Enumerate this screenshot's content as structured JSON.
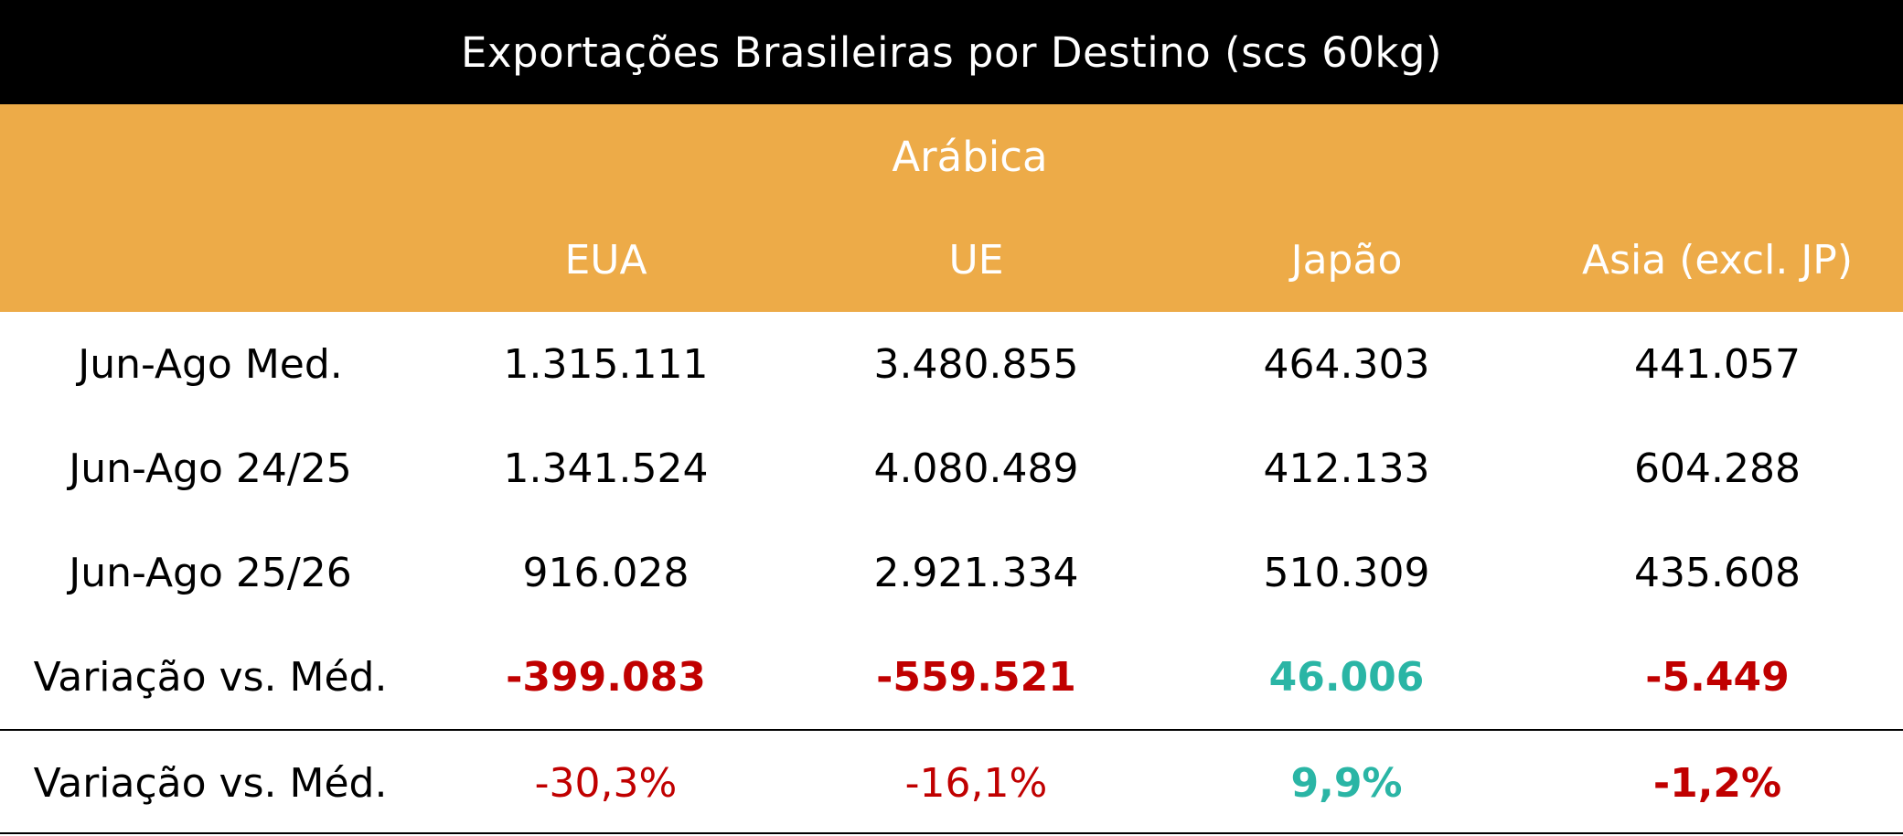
{
  "title": "Exportações Brasileiras por Destino (scs 60kg)",
  "category": "Arábica",
  "columns": [
    "EUA",
    "UE",
    "Japão",
    "Asia (excl. JP)"
  ],
  "colors": {
    "header_bg": "#EDAB48",
    "title_bg": "#000000",
    "negative": "#C00000",
    "positive": "#2AB5A5"
  },
  "rows": [
    {
      "label": "Jun-Ago Med.",
      "values": [
        "1.315.111",
        "3.480.855",
        "464.303",
        "441.057"
      ]
    },
    {
      "label": "Jun-Ago 24/25",
      "values": [
        "1.341.524",
        "4.080.489",
        "412.133",
        "604.288"
      ]
    },
    {
      "label": "Jun-Ago 25/26",
      "values": [
        "916.028",
        "2.921.334",
        "510.309",
        "435.608"
      ]
    },
    {
      "label": "Variação vs. Méd.",
      "values": [
        "-399.083",
        "-559.521",
        "46.006",
        "-5.449"
      ]
    },
    {
      "label": "Variação vs. Méd.",
      "values": [
        "-30,3%",
        "-16,1%",
        "9,9%",
        "-1,2%"
      ]
    }
  ],
  "value_styles": {
    "row3": [
      "negative-bold",
      "negative-bold",
      "positive-bold",
      "negative-bold"
    ],
    "row4": [
      "negative",
      "negative",
      "positive-bold",
      "negative-bold"
    ]
  }
}
